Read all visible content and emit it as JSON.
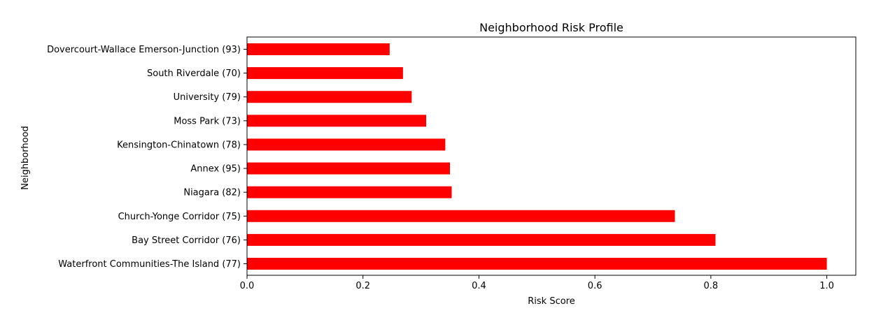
{
  "chart_data": {
    "type": "bar",
    "orientation": "horizontal",
    "title": "Neighborhood Risk Profile",
    "xlabel": "Risk Score",
    "ylabel": "Neighborhood",
    "xlim": [
      0,
      1.05
    ],
    "xticks": [
      0.0,
      0.2,
      0.4,
      0.6,
      0.8,
      1.0
    ],
    "xtick_labels": [
      "0.0",
      "0.2",
      "0.4",
      "0.6",
      "0.8",
      "1.0"
    ],
    "grid": false,
    "categories": [
      "Dovercourt-Wallace Emerson-Junction (93)",
      "South Riverdale (70)",
      "University (79)",
      "Moss Park (73)",
      "Kensington-Chinatown (78)",
      "Annex (95)",
      "Niagara (82)",
      "Church-Yonge Corridor (75)",
      "Bay Street Corridor (76)",
      "Waterfront Communities-The Island (77)"
    ],
    "values": [
      0.246,
      0.269,
      0.284,
      0.309,
      0.342,
      0.35,
      0.353,
      0.738,
      0.808,
      1.0
    ],
    "bar_color": "#ff0000"
  }
}
